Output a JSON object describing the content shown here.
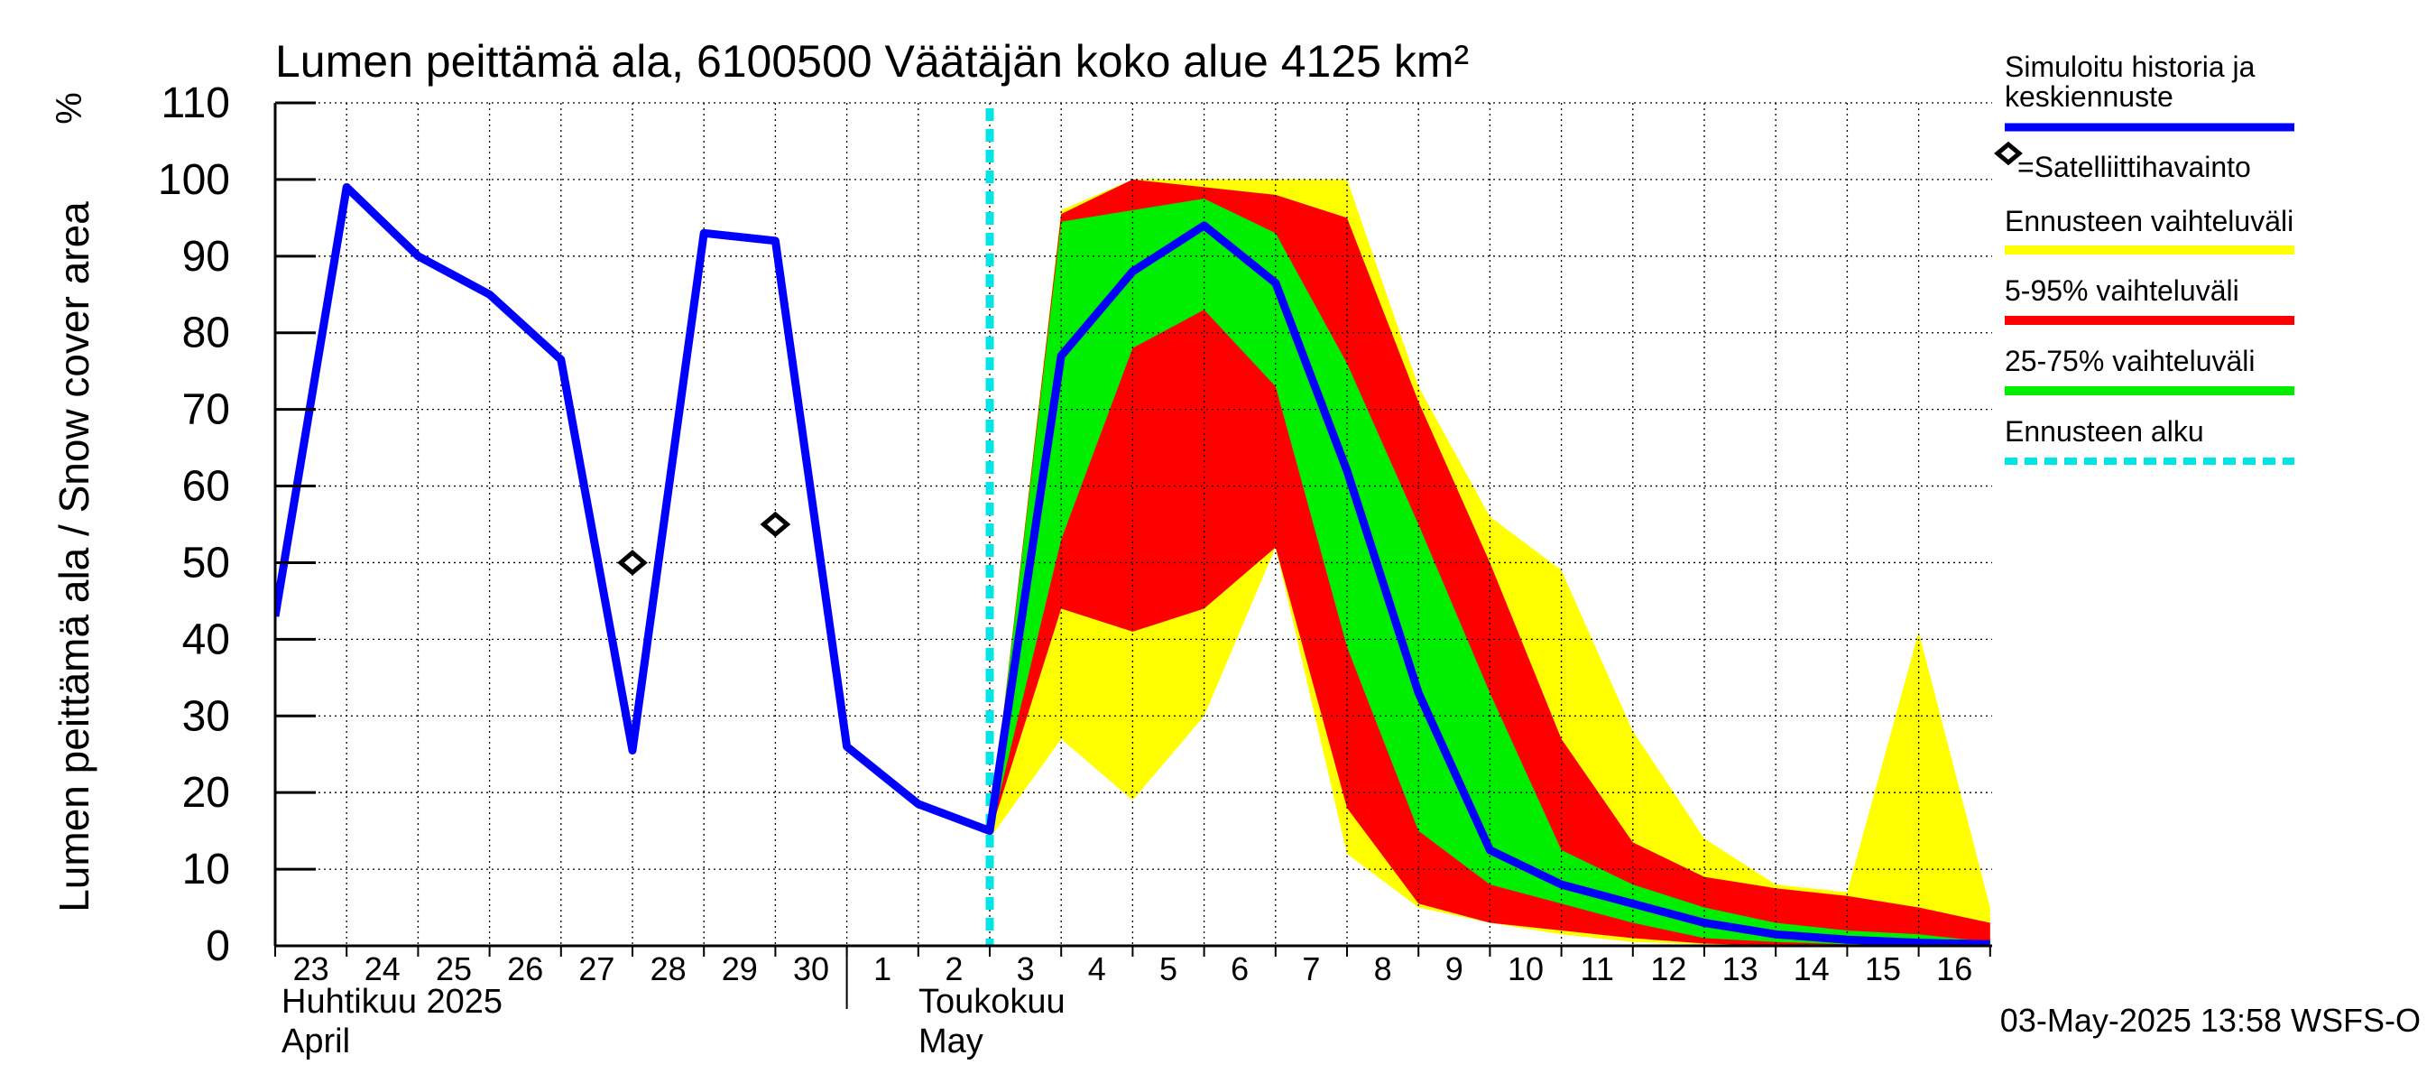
{
  "chart_data": {
    "type": "area",
    "title": "Lumen peittämä ala, 6100500 Väätäjän koko alue 4125 km²",
    "ylabel": "Lumen peittämä ala / Snow cover area",
    "yunit": "%",
    "ylim": [
      0,
      110
    ],
    "yticks": [
      0,
      10,
      20,
      30,
      40,
      50,
      60,
      70,
      80,
      90,
      100,
      110
    ],
    "grid": true,
    "x_start": "2025-04-23",
    "x_end": "2025-05-16",
    "x_tick_labels": [
      "23",
      "24",
      "25",
      "26",
      "27",
      "28",
      "29",
      "30",
      "1",
      "2",
      "3",
      "4",
      "5",
      "6",
      "7",
      "8",
      "9",
      "10",
      "11",
      "12",
      "13",
      "14",
      "15",
      "16"
    ],
    "month_labels": [
      {
        "fi": "Huhtikuu  2025",
        "en": "April"
      },
      {
        "fi": "Toukokuu",
        "en": "May"
      }
    ],
    "forecast_start": "2025-05-03",
    "timestamp": "03-May-2025 13:58 WSFS-O",
    "legend": {
      "placement": "right",
      "items": [
        {
          "label": "Simuloitu historia ja keskiennuste",
          "color": "#0000ff"
        },
        {
          "label": "=Satelliittihavainto",
          "color": "#000000"
        },
        {
          "label": "Ennusteen vaihteluväli",
          "color": "#ffff00"
        },
        {
          "label": "5-95% vaihteluväli",
          "color": "#ff0000"
        },
        {
          "label": "25-75% vaihteluväli",
          "color": "#00ee00"
        },
        {
          "label": "Ennusteen alku",
          "color": "#00e5e5"
        }
      ]
    },
    "series": [
      {
        "name": "Simuloitu historia ja keskiennuste",
        "x": [
          "2025-04-23",
          "2025-04-24",
          "2025-04-25",
          "2025-04-26",
          "2025-04-27",
          "2025-04-28",
          "2025-04-29",
          "2025-04-30",
          "2025-05-01",
          "2025-05-02",
          "2025-05-03",
          "2025-05-04",
          "2025-05-05",
          "2025-05-06",
          "2025-05-07",
          "2025-05-08",
          "2025-05-09",
          "2025-05-10",
          "2025-05-11",
          "2025-05-12",
          "2025-05-13",
          "2025-05-14",
          "2025-05-15",
          "2025-05-16",
          "2025-05-17"
        ],
        "values": [
          43,
          99,
          90,
          85,
          76.5,
          25.5,
          93,
          92,
          26,
          18.5,
          15,
          77,
          88,
          94,
          86.5,
          62,
          33,
          12.5,
          8,
          5.5,
          3,
          1.5,
          0.8,
          0.4,
          0.2
        ]
      },
      {
        "name": "=Satelliittihavainto",
        "x": [
          "2025-04-28",
          "2025-04-30"
        ],
        "values": [
          50,
          55
        ]
      },
      {
        "name": "Ennusteen vaihteluväli",
        "x": [
          "2025-05-03",
          "2025-05-04",
          "2025-05-05",
          "2025-05-06",
          "2025-05-07",
          "2025-05-08",
          "2025-05-09",
          "2025-05-10",
          "2025-05-11",
          "2025-05-12",
          "2025-05-13",
          "2025-05-14",
          "2025-05-15",
          "2025-05-16",
          "2025-05-17"
        ],
        "upper": [
          15,
          96,
          100,
          100,
          100,
          100,
          73,
          56,
          49,
          28,
          14,
          8,
          7,
          41,
          5
        ],
        "lower": [
          14,
          27,
          19,
          30,
          52,
          12,
          5,
          3,
          1.5,
          0.5,
          0.2,
          0,
          0,
          0,
          0
        ]
      },
      {
        "name": "5-95% vaihteluväli",
        "x": [
          "2025-05-03",
          "2025-05-04",
          "2025-05-05",
          "2025-05-06",
          "2025-05-07",
          "2025-05-08",
          "2025-05-09",
          "2025-05-10",
          "2025-05-11",
          "2025-05-12",
          "2025-05-13",
          "2025-05-14",
          "2025-05-15",
          "2025-05-16",
          "2025-05-17"
        ],
        "upper": [
          15,
          95.5,
          100,
          99,
          98,
          95,
          71,
          50,
          27,
          13.5,
          9,
          7.5,
          6.5,
          5,
          3
        ],
        "lower": [
          14.5,
          44,
          41,
          44,
          52,
          18,
          5.5,
          3,
          2,
          1,
          0.3,
          0,
          0,
          0,
          0
        ]
      },
      {
        "name": "25-75% vaihteluväli",
        "x": [
          "2025-05-03",
          "2025-05-04",
          "2025-05-05",
          "2025-05-06",
          "2025-05-07",
          "2025-05-08",
          "2025-05-09",
          "2025-05-10",
          "2025-05-11",
          "2025-05-12",
          "2025-05-13",
          "2025-05-14",
          "2025-05-15",
          "2025-05-16",
          "2025-05-17"
        ],
        "upper": [
          15,
          94.5,
          96,
          97.5,
          93,
          76,
          55,
          33,
          12.5,
          8,
          5,
          3,
          2,
          1.5,
          0.5
        ],
        "lower": [
          14.5,
          53,
          78,
          83,
          73,
          39,
          15,
          8,
          5.5,
          3,
          1,
          0.5,
          0.2,
          0,
          0
        ]
      }
    ]
  }
}
